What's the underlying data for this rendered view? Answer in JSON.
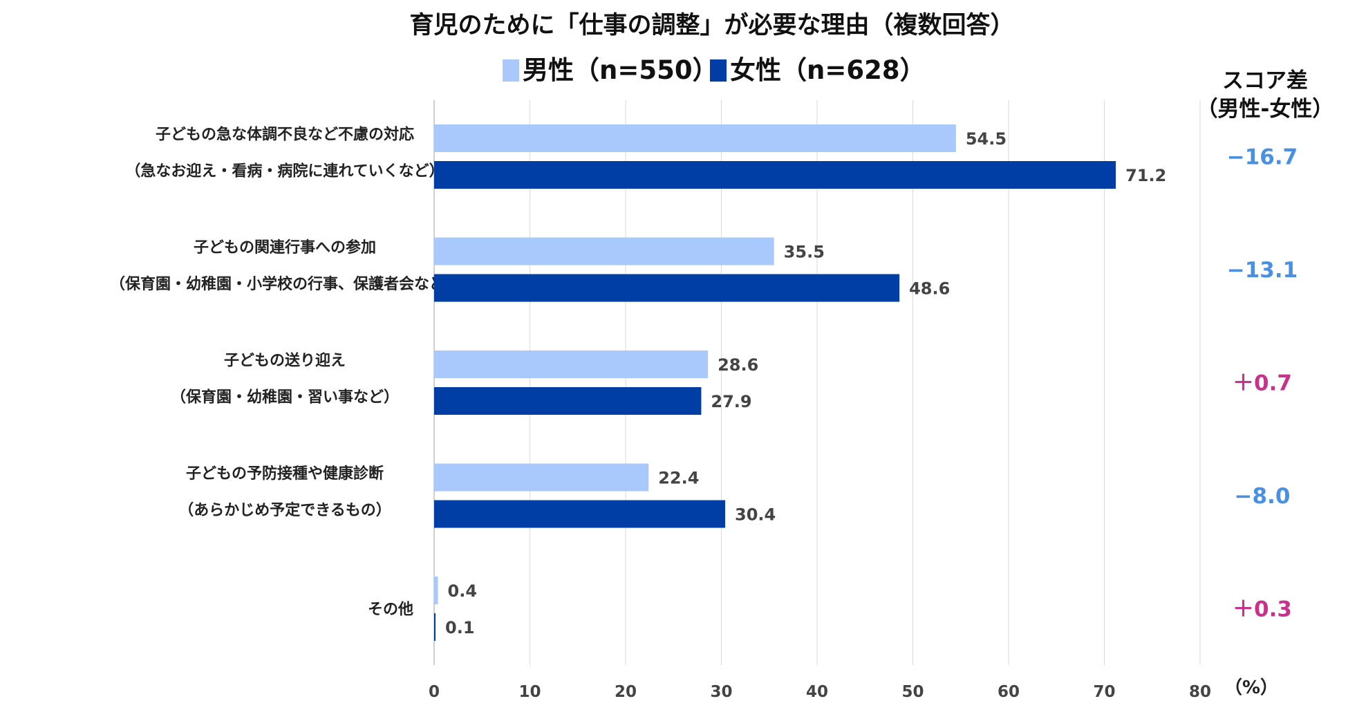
{
  "chart_data": {
    "type": "bar",
    "orientation": "horizontal",
    "title": "育児のために「仕事の調整」が必要な理由（複数回答）",
    "unit": "（%）",
    "xlim": [
      0,
      80
    ],
    "xticks": [
      0,
      10,
      20,
      30,
      40,
      50,
      60,
      70,
      80
    ],
    "grid": true,
    "legend_position": "top-center",
    "categories": [
      [
        "子どもの急な体調不良など不慮の対応",
        "（急なお迎え・看病・病院に連れていくなど）"
      ],
      [
        "子どもの関連行事への参加",
        "（保育園・幼稚園・小学校の行事、保護者会など）"
      ],
      [
        "子どもの送り迎え",
        "（保育園・幼稚園・習い事など）"
      ],
      [
        "子どもの予防接種や健康診断",
        "（あらかじめ予定できるもの）"
      ],
      [
        "その他"
      ]
    ],
    "series": [
      {
        "name": "男性（n=550）",
        "color": "#a9c8fc",
        "values": [
          54.5,
          35.5,
          28.6,
          22.4,
          0.4
        ]
      },
      {
        "name": "女性（n=628）",
        "color": "#003da5",
        "values": [
          71.2,
          48.6,
          27.9,
          30.4,
          0.1
        ]
      }
    ],
    "score_diff": {
      "title": [
        "スコア差",
        "（男性-女性）"
      ],
      "values": [
        "−16.7",
        "−13.1",
        "＋0.7",
        "−8.0",
        "＋0.3"
      ],
      "colors": [
        "#4a90e2",
        "#4a90e2",
        "#c7338a",
        "#4a90e2",
        "#c7338a"
      ]
    }
  },
  "colors": {
    "grid": "#d9d9d9",
    "axis": "#bfbfbf"
  }
}
